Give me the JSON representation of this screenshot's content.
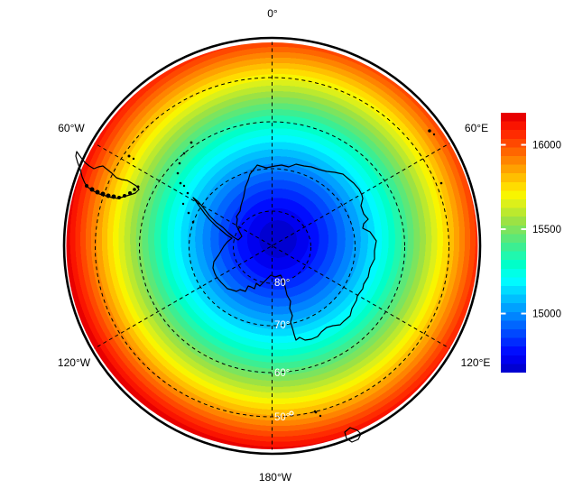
{
  "figure": {
    "background_color": "#ffffff",
    "frame_color": "#000000",
    "coastline_color": "#000000",
    "graticule_color": "#000000",
    "parallel_label_color": "#ffffff",
    "meridian_label_color": "#000000"
  },
  "chart_data": {
    "type": "heatmap",
    "subtype": "filled-contour-polar-map",
    "projection": "south polar stereographic",
    "region": "Antarctica / Southern Hemisphere poleward of about 40S",
    "title": "",
    "colormap": "jet",
    "value_min": 14650,
    "value_max": 16150,
    "contour_interval": 50,
    "radial_profile_exponent": 1.4,
    "meridians_deg": [
      0,
      60,
      120,
      180,
      240,
      300
    ],
    "meridian_labels": [
      "0°",
      "60°E",
      "120°E",
      "180°W",
      "120°W",
      "60°W"
    ],
    "parallels_deg": [
      -80,
      -70,
      -60,
      -50
    ],
    "parallel_labels": [
      "80°",
      "70°",
      "60°",
      "50°"
    ],
    "colorbar": {
      "vmin": 14650,
      "vmax": 16190,
      "ticks": [
        16000,
        15500,
        15000
      ],
      "tick_labels": [
        "16000",
        "15500",
        "15000"
      ],
      "orientation": "vertical",
      "position": "right"
    },
    "palette": [
      "#0000D1",
      "#0000EF",
      "#000DFF",
      "#002BFF",
      "#0048FF",
      "#0066FF",
      "#0084FF",
      "#00A1FF",
      "#00BFFF",
      "#00DCFF",
      "#00FAFF",
      "#00FFE7",
      "#00FFC9",
      "#20F8AE",
      "#3CEE92",
      "#5CE878",
      "#7CE45E",
      "#9CE244",
      "#BCE92E",
      "#DCF01A",
      "#F8F500",
      "#FFDC00",
      "#FFBF00",
      "#FFA100",
      "#FF8400",
      "#FF6600",
      "#FF4800",
      "#FF2B00",
      "#FA1400",
      "#E80000"
    ],
    "field_center_value_location": "slightly offset from pole",
    "legend_position": "right"
  }
}
